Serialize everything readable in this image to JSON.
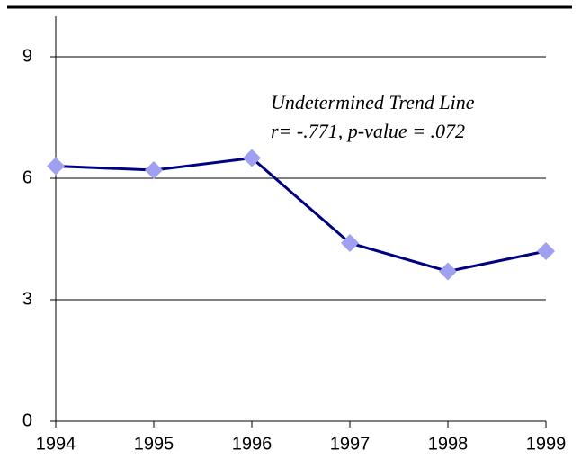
{
  "chart_data": {
    "type": "line",
    "categories": [
      "1994",
      "1995",
      "1996",
      "1997",
      "1998",
      "1999"
    ],
    "series": [
      {
        "name": null,
        "color": "#000080",
        "marker_color": "#a0a0f0",
        "values": [
          6.3,
          6.2,
          6.5,
          4.4,
          3.7,
          4.2
        ]
      }
    ],
    "ylim": [
      0,
      10
    ],
    "yticks": [
      0,
      3,
      6,
      9
    ],
    "grid": true,
    "annotation": [
      "Undetermined Trend Line",
      "r= -.771, p-value = .072"
    ]
  }
}
